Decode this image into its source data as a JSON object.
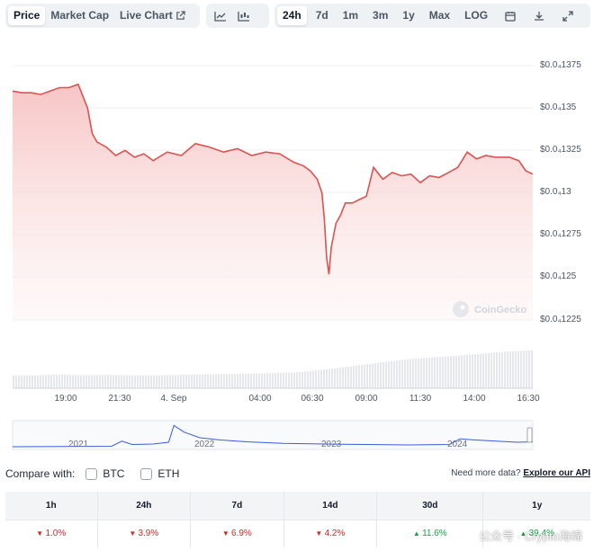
{
  "toolbar": {
    "view_tabs": [
      "Price",
      "Market Cap",
      "Live Chart"
    ],
    "range_tabs": [
      "24h",
      "7d",
      "1m",
      "3m",
      "1y",
      "Max",
      "LOG"
    ],
    "icons": [
      "line-chart-icon",
      "candlestick-chart-icon",
      "calendar-icon",
      "download-icon",
      "expand-icon",
      "external-link-icon"
    ],
    "active_view": "Price",
    "active_range": "24h"
  },
  "chart_data": {
    "type": "area",
    "y_ticks": [
      "$0.0₄1375",
      "$0.0₄135",
      "$0.0₄1325",
      "$0.0₄13",
      "$0.0₄1275",
      "$0.0₄125",
      "$0.0₄1225"
    ],
    "x_ticks": [
      "19:00",
      "21:30",
      "4. Sep",
      "04:00",
      "06:30",
      "09:00",
      "11:30",
      "14:00",
      "16:30"
    ],
    "ylim": [
      1.217e-05,
      1.383e-05
    ],
    "line_color": "#d9534f",
    "fill_color": "#fbd5d5",
    "price_series": [
      [
        0.0,
        1.000036
      ],
      [
        0.2,
        1.0000359
      ],
      [
        0.4,
        1.0000359
      ],
      [
        0.6,
        1.0000358
      ],
      [
        0.8,
        1.000036
      ],
      [
        1.0,
        1.0000362
      ],
      [
        1.2,
        1.0000362
      ],
      [
        1.4,
        1.0000364
      ],
      [
        1.5,
        1.0000357
      ],
      [
        1.6,
        1.000035
      ],
      [
        1.7,
        1.0000335
      ],
      [
        1.8,
        1.000033
      ],
      [
        2.0,
        1.0000327
      ],
      [
        2.2,
        1.0000322
      ],
      [
        2.4,
        1.0000325
      ],
      [
        2.6,
        1.0000321
      ],
      [
        2.8,
        1.0000323
      ],
      [
        3.0,
        1.0000319
      ],
      [
        3.3,
        1.0000324
      ],
      [
        3.6,
        1.0000322
      ],
      [
        3.9,
        1.0000329
      ],
      [
        4.2,
        1.0000327
      ],
      [
        4.5,
        1.0000324
      ],
      [
        4.8,
        1.0000326
      ],
      [
        5.1,
        1.0000322
      ],
      [
        5.4,
        1.0000324
      ],
      [
        5.7,
        1.0000323
      ],
      [
        6.0,
        1.0000318
      ],
      [
        6.2,
        1.0000316
      ],
      [
        6.35,
        1.0000313
      ],
      [
        6.5,
        1.0000308
      ],
      [
        6.6,
        1.00003
      ],
      [
        6.65,
        1.0000285
      ],
      [
        6.7,
        1.0000262
      ],
      [
        6.75,
        1.0000252
      ],
      [
        6.8,
        1.0000268
      ],
      [
        6.9,
        1.0000282
      ],
      [
        7.0,
        1.0000287
      ],
      [
        7.1,
        1.0000294
      ],
      [
        7.25,
        1.0000294
      ],
      [
        7.4,
        1.0000296
      ],
      [
        7.55,
        1.0000298
      ],
      [
        7.7,
        1.0000315
      ],
      [
        7.9,
        1.0000308
      ],
      [
        8.1,
        1.0000312
      ],
      [
        8.3,
        1.000031
      ],
      [
        8.5,
        1.0000311
      ],
      [
        8.7,
        1.0000306
      ],
      [
        8.9,
        1.000031
      ],
      [
        9.1,
        1.0000309
      ],
      [
        9.3,
        1.0000312
      ],
      [
        9.5,
        1.0000315
      ],
      [
        9.7,
        1.0000324
      ],
      [
        9.9,
        1.000032
      ],
      [
        10.1,
        1.0000322
      ],
      [
        10.3,
        1.0000321
      ],
      [
        10.6,
        1.0000321
      ],
      [
        10.8,
        1.0000319
      ],
      [
        10.95,
        1.0000313
      ],
      [
        11.1,
        1.0000311
      ]
    ],
    "volume_series": [
      [
        0.0,
        0.3
      ],
      [
        0.5,
        0.3
      ],
      [
        1.0,
        0.32
      ],
      [
        1.5,
        0.3
      ],
      [
        2.0,
        0.31
      ],
      [
        2.5,
        0.3
      ],
      [
        3.0,
        0.3
      ],
      [
        3.5,
        0.31
      ],
      [
        4.0,
        0.32
      ],
      [
        4.5,
        0.33
      ],
      [
        5.0,
        0.34
      ],
      [
        5.5,
        0.35
      ],
      [
        6.0,
        0.36
      ],
      [
        6.5,
        0.42
      ],
      [
        7.0,
        0.48
      ],
      [
        7.5,
        0.55
      ],
      [
        8.0,
        0.62
      ],
      [
        8.5,
        0.68
      ],
      [
        9.0,
        0.72
      ],
      [
        9.5,
        0.76
      ],
      [
        10.0,
        0.8
      ],
      [
        10.5,
        0.85
      ],
      [
        11.1,
        0.88
      ]
    ],
    "watermark_logo": "CoinGecko"
  },
  "mini_chart": {
    "years": [
      "2021",
      "2022",
      "2023",
      "2024"
    ],
    "series": [
      [
        0.0,
        0.0
      ],
      [
        0.19,
        0.02
      ],
      [
        0.21,
        0.25
      ],
      [
        0.23,
        0.1
      ],
      [
        0.27,
        0.12
      ],
      [
        0.3,
        0.2
      ],
      [
        0.31,
        0.95
      ],
      [
        0.33,
        0.65
      ],
      [
        0.36,
        0.4
      ],
      [
        0.4,
        0.3
      ],
      [
        0.45,
        0.22
      ],
      [
        0.52,
        0.15
      ],
      [
        0.6,
        0.12
      ],
      [
        0.68,
        0.1
      ],
      [
        0.76,
        0.08
      ],
      [
        0.84,
        0.1
      ],
      [
        0.86,
        0.35
      ],
      [
        0.89,
        0.3
      ],
      [
        0.93,
        0.25
      ],
      [
        0.97,
        0.2
      ],
      [
        1.0,
        0.22
      ]
    ]
  },
  "compare": {
    "label": "Compare with:",
    "options": [
      "BTC",
      "ETH"
    ],
    "need_more_text": "Need more data?",
    "api_link": "Explore our API"
  },
  "performance": {
    "columns": [
      "1h",
      "24h",
      "7d",
      "14d",
      "30d",
      "1y"
    ],
    "values": [
      "1.0%",
      "3.9%",
      "6.9%",
      "4.2%",
      "11.6%",
      "39.4%"
    ],
    "directions": [
      "down",
      "down",
      "down",
      "down",
      "up",
      "up"
    ]
  },
  "watermark": "公众号 · Crypto海绵"
}
